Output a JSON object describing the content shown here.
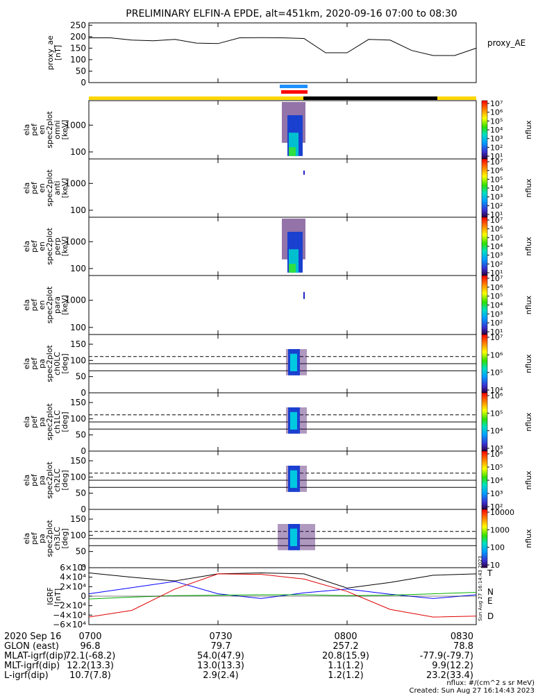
{
  "title": "PRELIMINARY ELFIN-A EPDE, alt=451km, 2020-09-16 07:00 to 08:30",
  "x_ticks": [
    "0700",
    "0730",
    "0800",
    "0830"
  ],
  "chart_data": [
    {
      "type": "line",
      "ylabel": [
        "proxy_ae",
        "[nT]"
      ],
      "y_ticks": [
        "250",
        "200",
        "150",
        "100",
        "50",
        "0"
      ],
      "ylim": [
        0,
        260
      ],
      "legend": "proxy_AE",
      "x_minutes": [
        0,
        5,
        10,
        15,
        20,
        25,
        30,
        35,
        40,
        45,
        50,
        55,
        60,
        65,
        70,
        75,
        80,
        85,
        90
      ],
      "values": [
        195,
        195,
        185,
        182,
        188,
        172,
        170,
        195,
        196,
        195,
        192,
        130,
        130,
        188,
        185,
        140,
        118,
        118,
        150
      ]
    },
    {
      "type": "heatmap",
      "ylabel": [
        "ela",
        "pef",
        "en",
        "spec2plot",
        "omni",
        "[keV]"
      ],
      "y_ticks": [
        "1000",
        "100"
      ],
      "colorbar_label": "nflux",
      "colorbar_ticks": [
        "10⁷",
        "10⁶",
        "10⁵",
        "10⁴",
        "10³",
        "10²",
        "10¹"
      ]
    },
    {
      "type": "heatmap",
      "ylabel": [
        "ela",
        "pef",
        "en",
        "spec2plot",
        "anti",
        "[keV]"
      ],
      "y_ticks": [
        "1000",
        "100"
      ],
      "colorbar_label": "nflux",
      "colorbar_ticks": [
        "10⁷",
        "10⁶",
        "10⁵",
        "10⁴",
        "10³",
        "10²",
        "10¹"
      ]
    },
    {
      "type": "heatmap",
      "ylabel": [
        "ela",
        "pef",
        "en",
        "spec2plot",
        "perp",
        "[keV]"
      ],
      "y_ticks": [
        "1000",
        "100"
      ],
      "colorbar_label": "nflux",
      "colorbar_ticks": [
        "10⁷",
        "10⁶",
        "10⁵",
        "10⁴",
        "10³",
        "10²",
        "10¹"
      ]
    },
    {
      "type": "heatmap",
      "ylabel": [
        "ela",
        "pef",
        "en",
        "spec2plot",
        "para",
        "[keV]"
      ],
      "y_ticks": [
        "1000",
        "100"
      ],
      "colorbar_label": "nflux",
      "colorbar_ticks": [
        "10⁷",
        "10⁶",
        "10⁵",
        "10⁴",
        "10³",
        "10²",
        "10¹"
      ]
    },
    {
      "type": "heatmap",
      "ylabel": [
        "ela",
        "pef",
        "pa",
        "spec2plot",
        "ch0LC",
        "[deg]"
      ],
      "y_ticks": [
        "150",
        "100",
        "50",
        "0"
      ],
      "colorbar_label": "nflux",
      "colorbar_ticks": [
        "10⁷",
        "10⁶",
        "10⁵",
        "10⁴"
      ]
    },
    {
      "type": "heatmap",
      "ylabel": [
        "ela",
        "pef",
        "pa",
        "spec2plot",
        "ch1LC",
        "[deg]"
      ],
      "y_ticks": [
        "150",
        "100",
        "50",
        "0"
      ],
      "colorbar_label": "nflux",
      "colorbar_ticks": [
        "10⁶",
        "10⁵",
        "10⁴",
        "10³"
      ]
    },
    {
      "type": "heatmap",
      "ylabel": [
        "ela",
        "pef",
        "pa",
        "spec2plot",
        "ch2LC",
        "[deg]"
      ],
      "y_ticks": [
        "150",
        "100",
        "50",
        "0"
      ],
      "colorbar_label": "nflux",
      "colorbar_ticks": [
        "10⁶",
        "10⁵",
        "10⁴",
        "10³",
        "10²"
      ]
    },
    {
      "type": "heatmap",
      "ylabel": [
        "ela",
        "pef",
        "pa",
        "spec2plot",
        "ch3LC",
        "[deg]"
      ],
      "y_ticks": [
        "150",
        "100",
        "50",
        "0"
      ],
      "colorbar_label": "nflux",
      "colorbar_ticks": [
        "10000",
        "1000",
        "100",
        "10"
      ]
    },
    {
      "type": "line",
      "ylabel": [
        "IGRF",
        "[nT]"
      ],
      "y_ticks": [
        "6×10⁴",
        "4×10⁴",
        "2×10⁴",
        "0",
        "−2×10⁴",
        "−4×10⁴",
        "−6×10⁴"
      ],
      "ylim": [
        -60000,
        60000
      ],
      "x_minutes": [
        0,
        10,
        20,
        30,
        40,
        50,
        60,
        70,
        80,
        90
      ],
      "series": [
        {
          "name": "T",
          "color": "#000000",
          "values": [
            49000,
            40000,
            32000,
            47000,
            49000,
            47000,
            17000,
            29000,
            44000,
            47000
          ]
        },
        {
          "name": "N",
          "color": "#0000ff",
          "values": [
            5000,
            18000,
            31000,
            5000,
            -5000,
            7000,
            15000,
            4000,
            -5000,
            3000
          ]
        },
        {
          "name": "E",
          "color": "#00b000",
          "values": [
            -6000,
            -2000,
            1000,
            2000,
            3000,
            3000,
            1000,
            2000,
            5000,
            8000
          ]
        },
        {
          "name": "D",
          "color": "#e00000",
          "values": [
            -44000,
            -30000,
            15000,
            47000,
            46000,
            36000,
            10000,
            -28000,
            -44000,
            -42000
          ]
        }
      ]
    }
  ],
  "footer": {
    "rows": [
      {
        "label": "2020 Sep 16",
        "values": [
          "0700",
          "0730",
          "0800",
          "0830"
        ]
      },
      {
        "label": "GLON (east)",
        "values": [
          "96.8",
          "79.7",
          "257.2",
          "78.8"
        ]
      },
      {
        "label": "MLAT-igrf(dip)",
        "values": [
          "72.1(-68.2)",
          "54.0(47.9)",
          "20.8(15.9)",
          "-77.9(-79.7)"
        ]
      },
      {
        "label": "MLT-igrf(dip)",
        "values": [
          "12.2(13.3)",
          "13.0(13.3)",
          "1.1(1.2)",
          "9.9(12.2)"
        ]
      },
      {
        "label": "L-igrf(dip)",
        "values": [
          "10.7(7.8)",
          "2.9(2.4)",
          "1.2(1.2)",
          "23.2(33.4)"
        ]
      }
    ],
    "units_note": "nflux: #/(cm^2 s sr MeV)",
    "created": "Created: Sun Aug 27 16:14:43 2023",
    "side_stamp": "Sun Aug 27 16:14:43 2023"
  }
}
